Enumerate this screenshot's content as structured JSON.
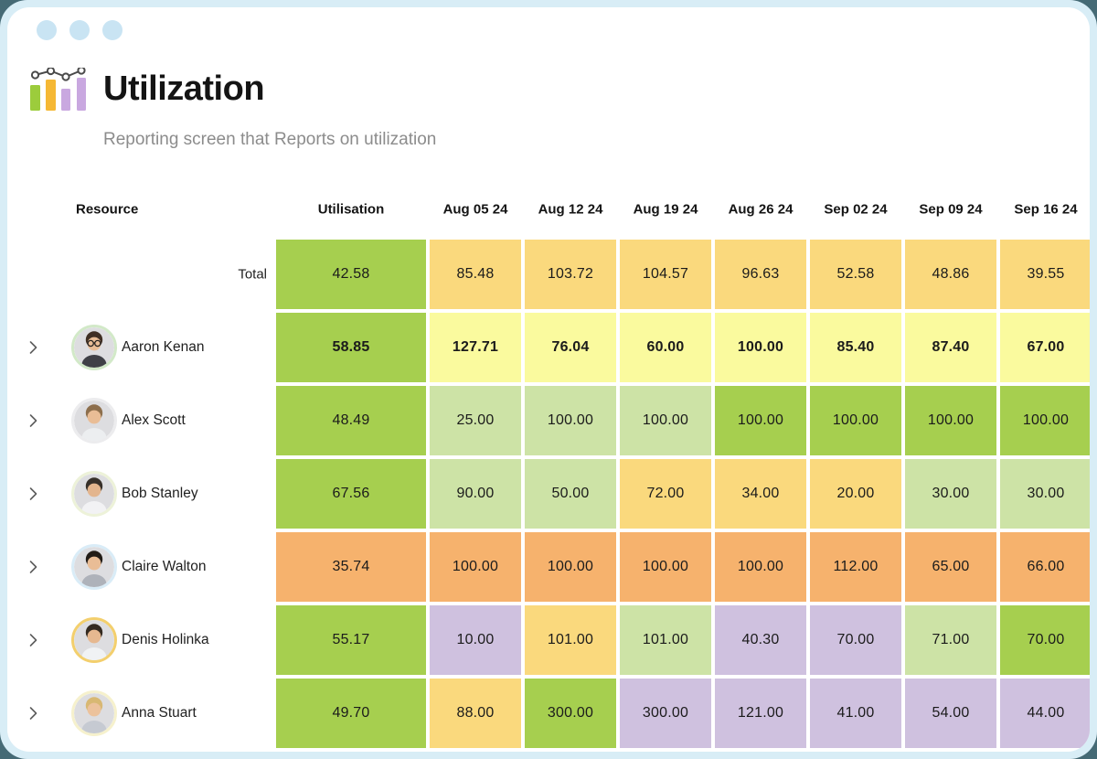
{
  "header": {
    "title": "Utilization",
    "subtitle": "Reporting screen that Reports on utilization"
  },
  "palette": {
    "green": "#a6cf4f",
    "pale_green": "#cde3a6",
    "yellow": "#fafa9e",
    "amber": "#fad97d",
    "orange": "#f6b26d",
    "lavender": "#cfc1df"
  },
  "icon_colors": {
    "bar_green": "#9ccc3c",
    "bar_yellow": "#f5b834",
    "bar_purple": "#c9a8e0",
    "line": "#4a4a4a",
    "dots_blue": "#c9e4f3"
  },
  "table": {
    "resource_header": "Resource",
    "columns": [
      "Utilisation",
      "Aug 05 24",
      "Aug 12 24",
      "Aug 19 24",
      "Aug 26 24",
      "Sep 02 24",
      "Sep 09 24",
      "Sep 16 24"
    ],
    "rows": [
      {
        "type": "total",
        "label": "Total",
        "values": [
          "42.58",
          "85.48",
          "103.72",
          "104.57",
          "96.63",
          "52.58",
          "48.86",
          "39.55"
        ],
        "colors": [
          "green",
          "amber",
          "amber",
          "amber",
          "amber",
          "amber",
          "amber",
          "amber"
        ]
      },
      {
        "type": "person",
        "label": "Aaron Kenan",
        "bold": true,
        "avatar": {
          "ring": "#d2e9c8",
          "hair": "#3f2f24",
          "skin": "#e9bd96",
          "shirt": "#3f4046",
          "glasses": true
        },
        "values": [
          "58.85",
          "127.71",
          "76.04",
          "60.00",
          "100.00",
          "85.40",
          "87.40",
          "67.00"
        ],
        "colors": [
          "green",
          "yellow",
          "yellow",
          "yellow",
          "yellow",
          "yellow",
          "yellow",
          "yellow"
        ]
      },
      {
        "type": "person",
        "label": "Alex Scott",
        "bold": false,
        "avatar": {
          "ring": "#ececee",
          "hair": "#8d6f4d",
          "skin": "#e9bd96",
          "shirt": "#eceef0",
          "glasses": false
        },
        "values": [
          "48.49",
          "25.00",
          "100.00",
          "100.00",
          "100.00",
          "100.00",
          "100.00",
          "100.00"
        ],
        "colors": [
          "green",
          "pale_green",
          "pale_green",
          "pale_green",
          "green",
          "green",
          "green",
          "green"
        ]
      },
      {
        "type": "person",
        "label": "Bob Stanley",
        "bold": false,
        "avatar": {
          "ring": "#edf2d9",
          "hair": "#37302a",
          "skin": "#e3b58e",
          "shirt": "#f2f2f4",
          "glasses": false
        },
        "values": [
          "67.56",
          "90.00",
          "50.00",
          "72.00",
          "34.00",
          "20.00",
          "30.00",
          "30.00"
        ],
        "colors": [
          "green",
          "pale_green",
          "pale_green",
          "amber",
          "amber",
          "amber",
          "pale_green",
          "pale_green"
        ]
      },
      {
        "type": "person",
        "label": "Claire Walton",
        "bold": false,
        "avatar": {
          "ring": "#d9ecf7",
          "hair": "#221c17",
          "skin": "#e9bd96",
          "shirt": "#aeb2ba",
          "glasses": false
        },
        "values": [
          "35.74",
          "100.00",
          "100.00",
          "100.00",
          "100.00",
          "112.00",
          "65.00",
          "66.00"
        ],
        "colors": [
          "orange",
          "orange",
          "orange",
          "orange",
          "orange",
          "orange",
          "orange",
          "orange"
        ]
      },
      {
        "type": "person",
        "label": "Denis Holinka",
        "bold": false,
        "avatar": {
          "ring": "#f3cf6d",
          "hair": "#352b21",
          "skin": "#e6b890",
          "shirt": "#f0f2f4",
          "glasses": false
        },
        "values": [
          "55.17",
          "10.00",
          "101.00",
          "101.00",
          "40.30",
          "70.00",
          "71.00",
          "70.00"
        ],
        "colors": [
          "green",
          "lavender",
          "amber",
          "pale_green",
          "lavender",
          "lavender",
          "pale_green",
          "green"
        ]
      },
      {
        "type": "person",
        "label": "Anna Stuart",
        "bold": false,
        "avatar": {
          "ring": "#f6f1cd",
          "hair": "#d8b873",
          "skin": "#ecc29c",
          "shirt": "#c6cad2",
          "glasses": false
        },
        "values": [
          "49.70",
          "88.00",
          "300.00",
          "300.00",
          "121.00",
          "41.00",
          "54.00",
          "44.00"
        ],
        "colors": [
          "green",
          "amber",
          "green",
          "lavender",
          "lavender",
          "lavender",
          "lavender",
          "lavender"
        ]
      }
    ]
  }
}
